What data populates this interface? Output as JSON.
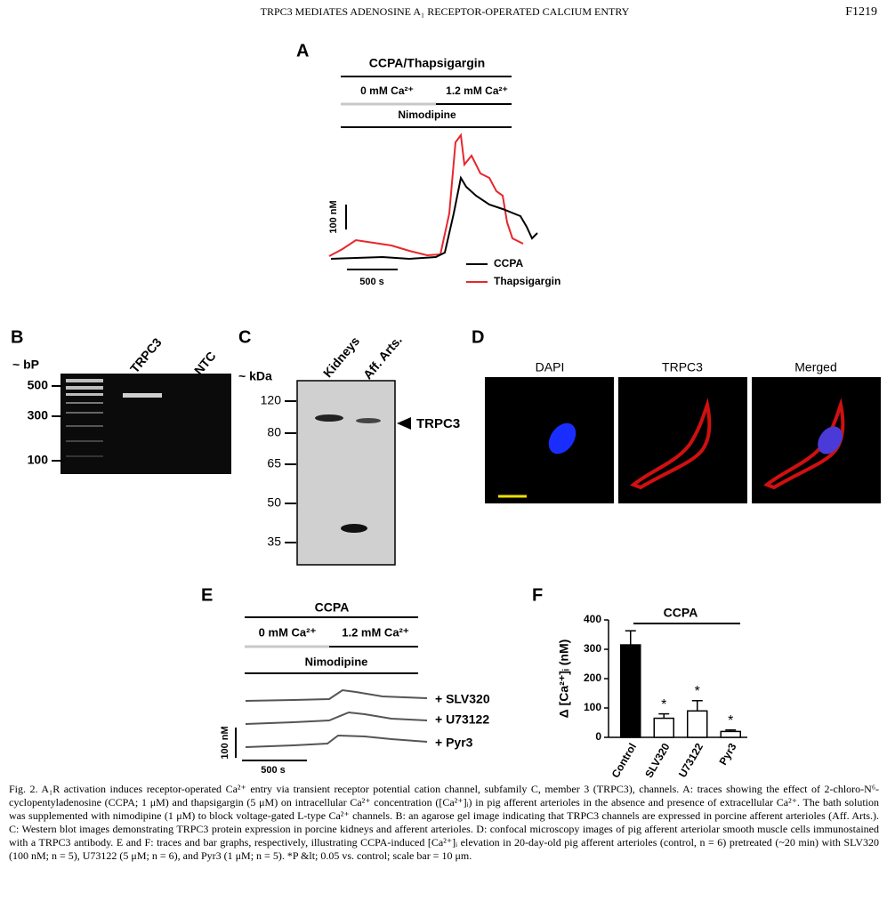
{
  "header": {
    "title": "TRPC3 MEDIATES ADENOSINE A₁ RECEPTOR-OPERATED CALCIUM ENTRY",
    "page": "F1219"
  },
  "panels": {
    "A": {
      "label": "A",
      "treatment": "CCPA/Thapsigargin",
      "condition_low": "0 mM Ca²⁺",
      "condition_high": "1.2 mM Ca²⁺",
      "bath": "Nimodipine",
      "scale_y": "100 nM",
      "scale_x": "500 s",
      "legend": [
        "CCPA",
        "Thapsigargin"
      ]
    },
    "B": {
      "label": "B",
      "unit": "~ bP",
      "markers": [
        "500",
        "300",
        "100"
      ],
      "lanes": [
        "TRPC3",
        "NTC"
      ]
    },
    "C": {
      "label": "C",
      "unit": "~ kDa",
      "markers": [
        "120",
        "80",
        "65",
        "50",
        "35"
      ],
      "lanes": [
        "Kidneys",
        "Aff. Arts."
      ],
      "band": "TRPC3"
    },
    "D": {
      "label": "D",
      "images": [
        "DAPI",
        "TRPC3",
        "Merged"
      ]
    },
    "E": {
      "label": "E",
      "treatment": "CCPA",
      "condition_low": "0 mM Ca²⁺",
      "condition_high": "1.2 mM Ca²⁺",
      "bath": "Nimodipine",
      "traces": [
        "+ SLV320",
        "+ U73122",
        "+ Pyr3"
      ],
      "scale_y": "100 nM",
      "scale_x": "500 s"
    },
    "F": {
      "label": "F"
    }
  },
  "chart_data": {
    "type": "bar",
    "y_label": "Δ [Ca²⁺]ᵢ (nM)",
    "annotation": "CCPA",
    "categories": [
      "Control",
      "SLV320",
      "U73122",
      "Pyr3"
    ],
    "values": [
      315,
      65,
      90,
      20
    ],
    "errors": [
      48,
      15,
      35,
      5
    ],
    "colors": [
      "#000000",
      "#ffffff",
      "#ffffff",
      "#ffffff"
    ],
    "significance": [
      {
        "category": "SLV320",
        "label": "*"
      },
      {
        "category": "U73122",
        "label": "*"
      },
      {
        "category": "Pyr3",
        "label": "*"
      }
    ],
    "ylim": [
      0,
      400
    ],
    "yticks": [
      0,
      100,
      200,
      300,
      400
    ]
  },
  "caption": "Fig. 2. A₁R activation induces receptor-operated Ca²⁺ entry via transient receptor potential cation channel, subfamily C, member 3 (TRPC3), channels. A: traces showing the effect of 2-chloro-N⁶-cyclopentyladenosine (CCPA; 1 μM) and thapsigargin (5 μM) on intracellular Ca²⁺ concentration ([Ca²⁺]ᵢ) in pig afferent arterioles in the absence and presence of extracellular Ca²⁺. The bath solution was supplemented with nimodipine (1 μM) to block voltage-gated L-type Ca²⁺ channels. B: an agarose gel image indicating that TRPC3 channels are expressed in porcine afferent arterioles (Aff. Arts.). C: Western blot images demonstrating TRPC3 protein expression in porcine kidneys and afferent arterioles. D: confocal microscopy images of pig afferent arteriolar smooth muscle cells immunostained with a TRPC3 antibody. E and F: traces and bar graphs, respectively, illustrating CCPA-induced [Ca²⁺]ᵢ elevation in 20-day-old pig afferent arterioles (control, n = 6) pretreated (~20 min) with SLV320 (100 nM; n = 5), U73122 (5 μM; n = 6), and Pyr3 (1 μM; n = 5). *P &lt; 0.05 vs. control; scale bar = 10 μm."
}
